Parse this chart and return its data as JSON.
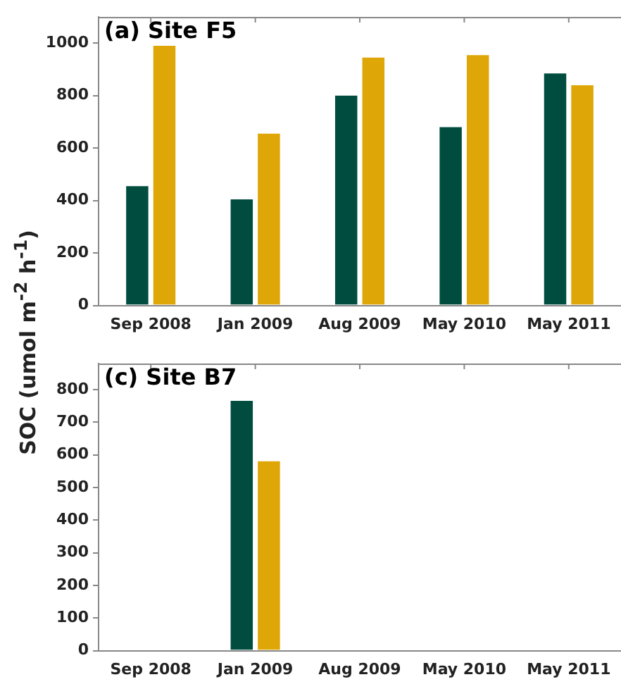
{
  "chart_data": [
    {
      "type": "bar",
      "title": "(a) Site F5",
      "ylabel": "SOC (umol m$^{-2}$ h$^{-1}$)",
      "categories": [
        "Sep 2008",
        "Jan 2009",
        "Aug 2009",
        "May 2010",
        "May 2011"
      ],
      "series": [
        {
          "color": "#004d40",
          "values": [
            460,
            410,
            805,
            685,
            890
          ]
        },
        {
          "color": "#dea606",
          "values": [
            995,
            660,
            950,
            960,
            845
          ]
        }
      ],
      "ylim": [
        0,
        1100
      ],
      "yticks": [
        0,
        200,
        400,
        600,
        800,
        1000
      ],
      "grid": false,
      "legend": false
    },
    {
      "type": "bar",
      "title": "(c) Site B7",
      "categories": [
        "Sep 2008",
        "Jan 2009",
        "Aug 2009",
        "May 2010",
        "May 2011"
      ],
      "series": [
        {
          "color": "#004d40",
          "values": [
            null,
            770,
            null,
            null,
            null
          ]
        },
        {
          "color": "#dea606",
          "values": [
            null,
            585,
            null,
            null,
            null
          ]
        }
      ],
      "ylim": [
        0,
        880
      ],
      "yticks": [
        0,
        100,
        200,
        300,
        400,
        500,
        600,
        700,
        800
      ],
      "grid": false,
      "legend": false
    }
  ]
}
